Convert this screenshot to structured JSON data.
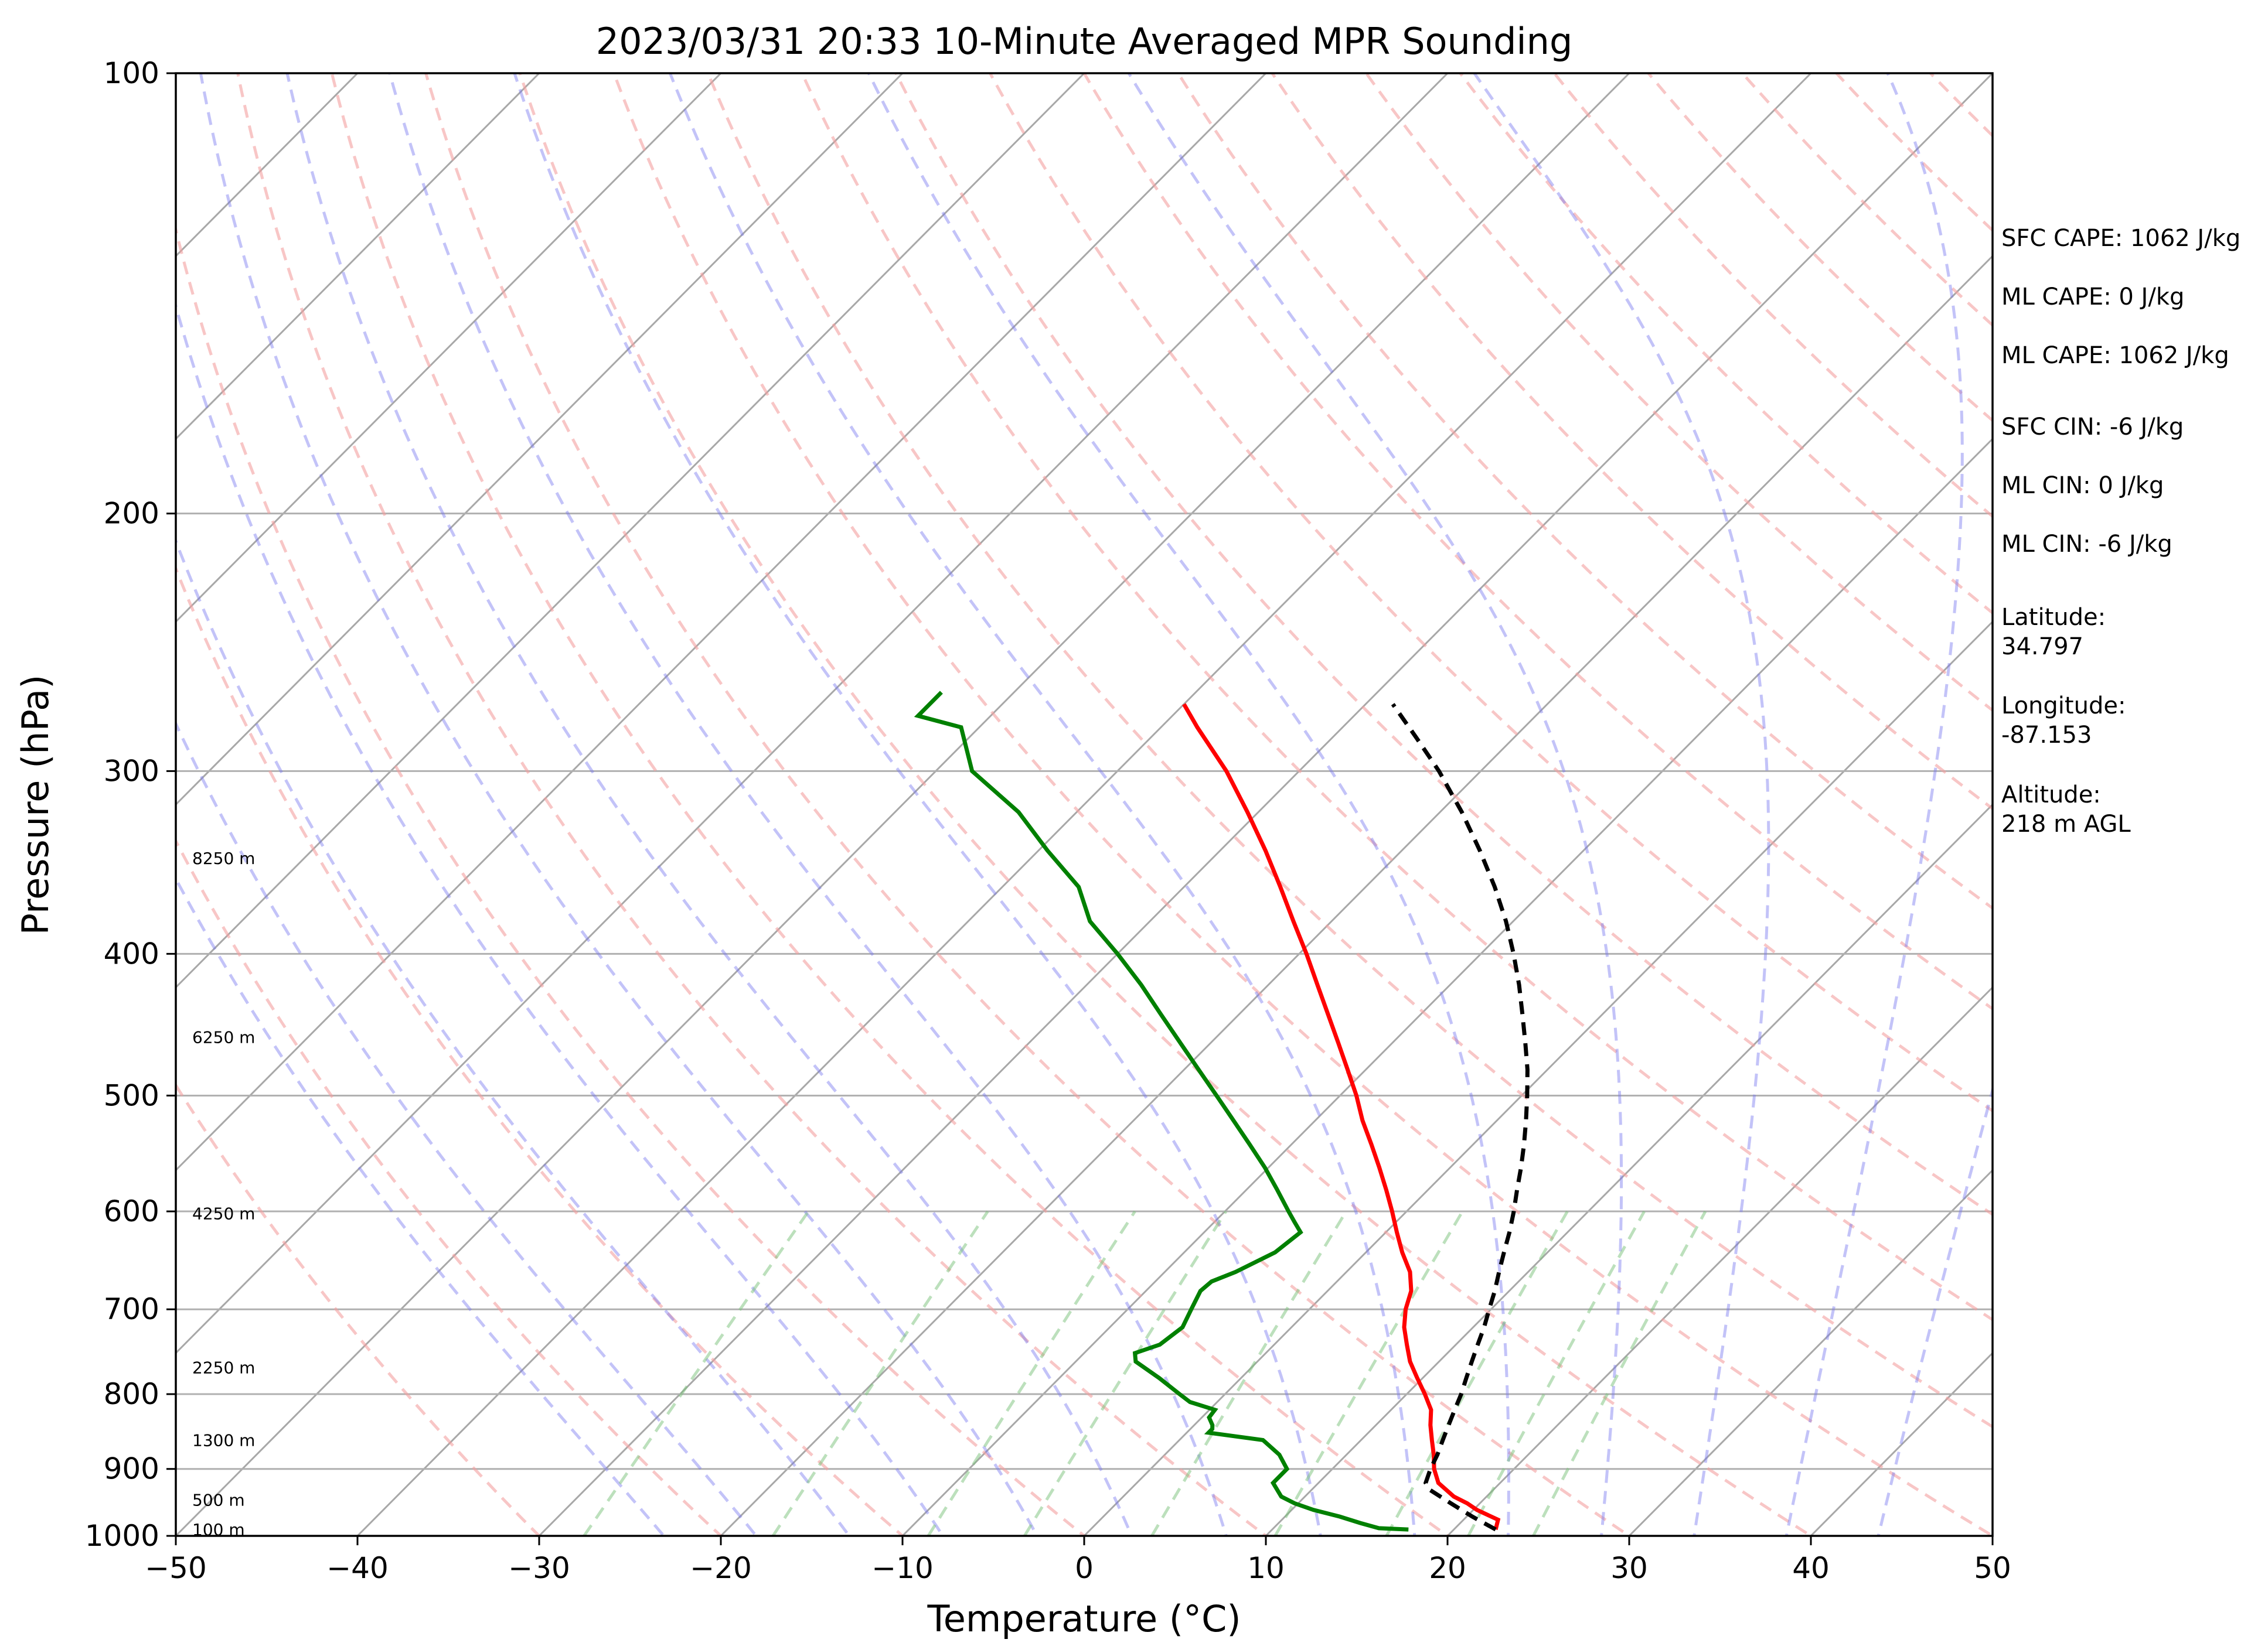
{
  "chart_data": {
    "type": "line",
    "title": "2023/03/31 20:33 10-Minute Averaged MPR Sounding",
    "xlabel": "Temperature (°C)",
    "ylabel": "Pressure (hPa)",
    "xlim": [
      -50,
      50
    ],
    "ylim": [
      1000,
      100
    ],
    "y_scale": "log",
    "skew": "skew-T log-p",
    "x_ticks": [
      -50,
      -40,
      -30,
      -20,
      -10,
      0,
      10,
      20,
      30,
      40,
      50
    ],
    "x_tick_labels": [
      "−50",
      "−40",
      "−30",
      "−20",
      "−10",
      "0",
      "10",
      "20",
      "30",
      "40",
      "50"
    ],
    "y_ticks": [
      1000,
      900,
      800,
      700,
      600,
      500,
      400,
      300,
      200,
      100
    ],
    "y_tick_labels": [
      "1000",
      "900",
      "800",
      "700",
      "600",
      "500",
      "400",
      "300",
      "200",
      "100"
    ],
    "height_labels": [
      {
        "label": "100 m",
        "pressure": 990
      },
      {
        "label": "500 m",
        "pressure": 945
      },
      {
        "label": "1300 m",
        "pressure": 860
      },
      {
        "label": "2250 m",
        "pressure": 767
      },
      {
        "label": "4250 m",
        "pressure": 602
      },
      {
        "label": "6250 m",
        "pressure": 456
      },
      {
        "label": "8250 m",
        "pressure": 344
      }
    ],
    "series": [
      {
        "role": "temperature",
        "color": "#ff0000",
        "p": [
          990,
          975,
          960,
          950,
          940,
          920,
          900,
          880,
          860,
          840,
          820,
          800,
          780,
          760,
          740,
          720,
          700,
          680,
          660,
          640,
          620,
          600,
          580,
          560,
          540,
          520,
          500,
          480,
          460,
          440,
          420,
          400,
          380,
          360,
          340,
          320,
          300,
          280,
          270
        ],
        "t": [
          22.3,
          21.9,
          20.2,
          19.3,
          18.2,
          16.6,
          15.6,
          14.8,
          13.9,
          13.0,
          12.2,
          11.0,
          9.7,
          8.4,
          7.3,
          6.2,
          5.3,
          4.6,
          3.5,
          2.0,
          0.6,
          -0.8,
          -2.3,
          -3.9,
          -5.6,
          -7.4,
          -9.1,
          -11.0,
          -13.0,
          -15.1,
          -17.3,
          -19.6,
          -22.1,
          -24.7,
          -27.5,
          -30.6,
          -34.0,
          -38.0,
          -40.0
        ]
      },
      {
        "role": "dewpoint",
        "color": "#008000",
        "p": [
          990,
          988,
          980,
          970,
          960,
          950,
          940,
          920,
          900,
          880,
          860,
          850,
          845,
          840,
          830,
          820,
          810,
          800,
          780,
          760,
          750,
          740,
          720,
          700,
          680,
          670,
          660,
          640,
          620,
          610,
          600,
          580,
          560,
          540,
          520,
          500,
          480,
          460,
          440,
          420,
          400,
          380,
          360,
          340,
          320,
          300,
          280,
          275,
          265
        ],
        "td": [
          17.5,
          15.8,
          14.5,
          13.0,
          11.2,
          9.8,
          8.7,
          7.5,
          7.5,
          6.3,
          4.6,
          1.2,
          1.2,
          1.0,
          0.4,
          0.3,
          -1.5,
          -2.5,
          -4.5,
          -6.7,
          -7.2,
          -6.3,
          -6.0,
          -6.5,
          -7.0,
          -6.9,
          -6.1,
          -5.0,
          -4.7,
          -5.6,
          -6.5,
          -8.3,
          -10.2,
          -12.3,
          -14.5,
          -16.8,
          -19.2,
          -21.7,
          -24.3,
          -27.0,
          -30.0,
          -33.3,
          -35.8,
          -39.5,
          -43.2,
          -48.0,
          -51.0,
          -54.0,
          -54.0
        ]
      },
      {
        "role": "parcel",
        "color": "#000000",
        "dash": "dashed",
        "p": [
          990,
          970,
          950,
          930,
          920,
          900,
          880,
          860,
          840,
          820,
          800,
          780,
          760,
          740,
          720,
          700,
          680,
          660,
          640,
          620,
          600,
          580,
          560,
          540,
          520,
          500,
          480,
          460,
          440,
          420,
          400,
          380,
          360,
          340,
          320,
          300,
          285,
          270
        ],
        "t": [
          22.3,
          20.3,
          18.4,
          16.5,
          15.9,
          15.4,
          15.0,
          14.5,
          14.0,
          13.5,
          13.0,
          12.4,
          11.8,
          11.2,
          10.6,
          9.9,
          9.2,
          8.4,
          7.6,
          6.8,
          5.9,
          4.9,
          3.9,
          2.8,
          1.6,
          0.3,
          -1.1,
          -2.7,
          -4.4,
          -6.2,
          -8.2,
          -10.4,
          -12.9,
          -15.7,
          -18.8,
          -22.3,
          -25.3,
          -28.5
        ]
      }
    ]
  },
  "info": {
    "sfc_cape": "SFC CAPE: 1062 J/kg",
    "ml_cape_1": "ML CAPE: 0 J/kg",
    "ml_cape_2": "ML CAPE: 1062 J/kg",
    "sfc_cin": "SFC CIN: -6 J/kg",
    "ml_cin_1": "ML CIN: 0 J/kg",
    "ml_cin_2": "ML CIN: -6 J/kg",
    "latitude_label": "Latitude:",
    "latitude_value": "34.797",
    "longitude_label": "Longitude:",
    "longitude_value": "-87.153",
    "altitude_label": "Altitude:",
    "altitude_value": "218 m AGL"
  }
}
